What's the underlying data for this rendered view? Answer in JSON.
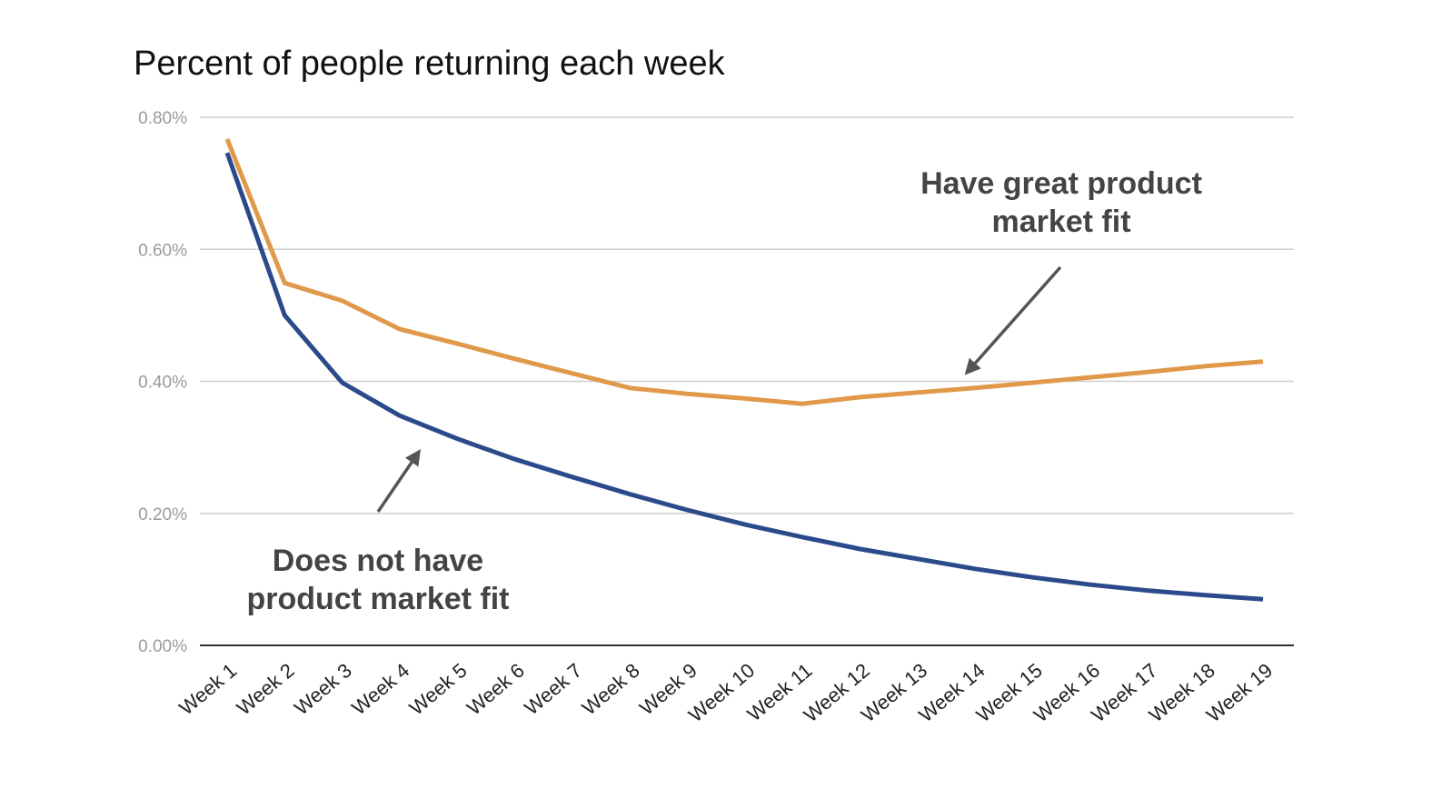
{
  "chart_data": {
    "type": "line",
    "title": "Percent of people returning each week",
    "xlabel": "",
    "ylabel": "",
    "categories": [
      "Week 1",
      "Week 2",
      "Week 3",
      "Week 4",
      "Week 5",
      "Week 6",
      "Week 7",
      "Week 8",
      "Week 9",
      "Week 10",
      "Week 11",
      "Week 12",
      "Week 13",
      "Week 14",
      "Week 15",
      "Week 16",
      "Week 17",
      "Week 18",
      "Week 19"
    ],
    "ylim": [
      0,
      0.8
    ],
    "yticks": [
      0,
      0.2,
      0.4,
      0.6,
      0.8
    ],
    "ytick_labels": [
      "0.00%",
      "0.20%",
      "0.40%",
      "0.60%",
      "0.80%"
    ],
    "grid": true,
    "series": [
      {
        "color": "#E0994A",
        "values": [
          0.767,
          0.549,
          0.522,
          0.479,
          0.457,
          0.434,
          0.412,
          0.39,
          0.381,
          0.374,
          0.366,
          0.376,
          0.383,
          0.39,
          0.398,
          0.406,
          0.414,
          0.423,
          0.43
        ]
      },
      {
        "color": "#2B4A8B",
        "values": [
          0.746,
          0.5,
          0.398,
          0.348,
          0.313,
          0.282,
          0.255,
          0.229,
          0.205,
          0.183,
          0.164,
          0.146,
          0.131,
          0.116,
          0.103,
          0.092,
          0.083,
          0.076,
          0.07
        ]
      }
    ],
    "annotations": [
      {
        "lines": [
          "Have great product",
          "market fit"
        ],
        "points_to_series": 0,
        "arrow_color": "#555555"
      },
      {
        "lines": [
          "Does not have",
          "product market fit"
        ],
        "points_to_series": 1,
        "arrow_color": "#555555"
      }
    ]
  }
}
